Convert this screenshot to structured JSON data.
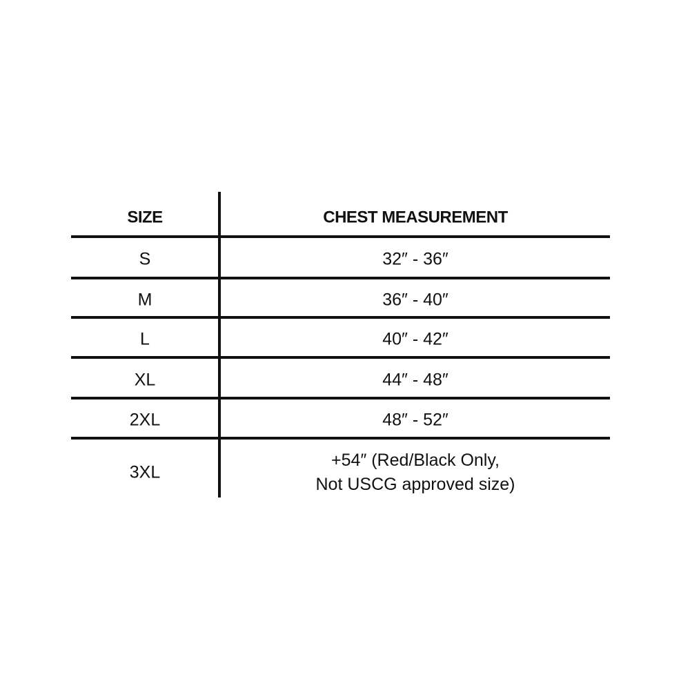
{
  "table": {
    "header": [
      "SIZE",
      "CHEST MEASUREMENT"
    ],
    "rows": [
      [
        "S",
        "32″ - 36″"
      ],
      [
        "M",
        "36″ - 40″"
      ],
      [
        "L",
        "40″ - 42″"
      ],
      [
        "XL",
        "44″ - 48″"
      ],
      [
        "2XL",
        "48″ - 52″"
      ],
      [
        "3XL",
        [
          "+54″ (Red/Black Only,",
          "Not USCG approved size)"
        ]
      ]
    ]
  }
}
